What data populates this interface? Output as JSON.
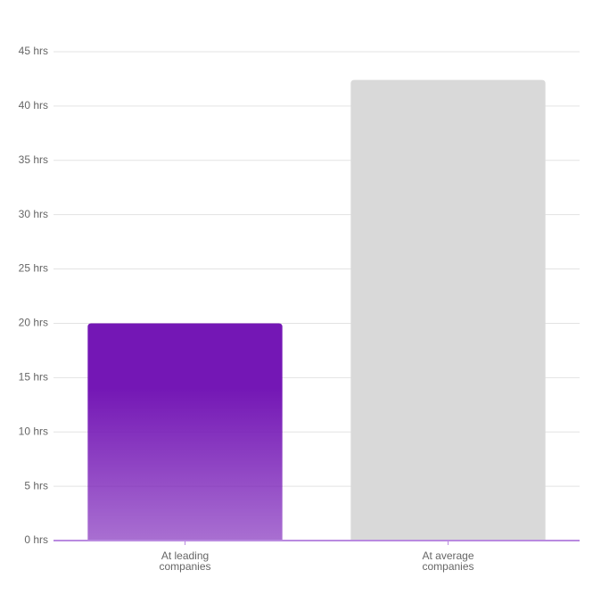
{
  "chart_data": {
    "type": "bar",
    "categories": [
      "At leading companies",
      "At average companies"
    ],
    "values": [
      20,
      42.4
    ],
    "colors": [
      "#7417b5",
      "#d9d9d9"
    ],
    "ylim": [
      0,
      45
    ],
    "yticks": [
      {
        "value": 0,
        "label": "0 hrs"
      },
      {
        "value": 5,
        "label": "5 hrs"
      },
      {
        "value": 10,
        "label": "10 hrs"
      },
      {
        "value": 15,
        "label": "15 hrs"
      },
      {
        "value": 20,
        "label": "20 hrs"
      },
      {
        "value": 25,
        "label": "25 hrs"
      },
      {
        "value": 30,
        "label": "30 hrs"
      },
      {
        "value": 35,
        "label": "35 hrs"
      },
      {
        "value": 40,
        "label": "40 hrs"
      },
      {
        "value": 45,
        "label": "45 hrs"
      }
    ],
    "grid": true
  }
}
